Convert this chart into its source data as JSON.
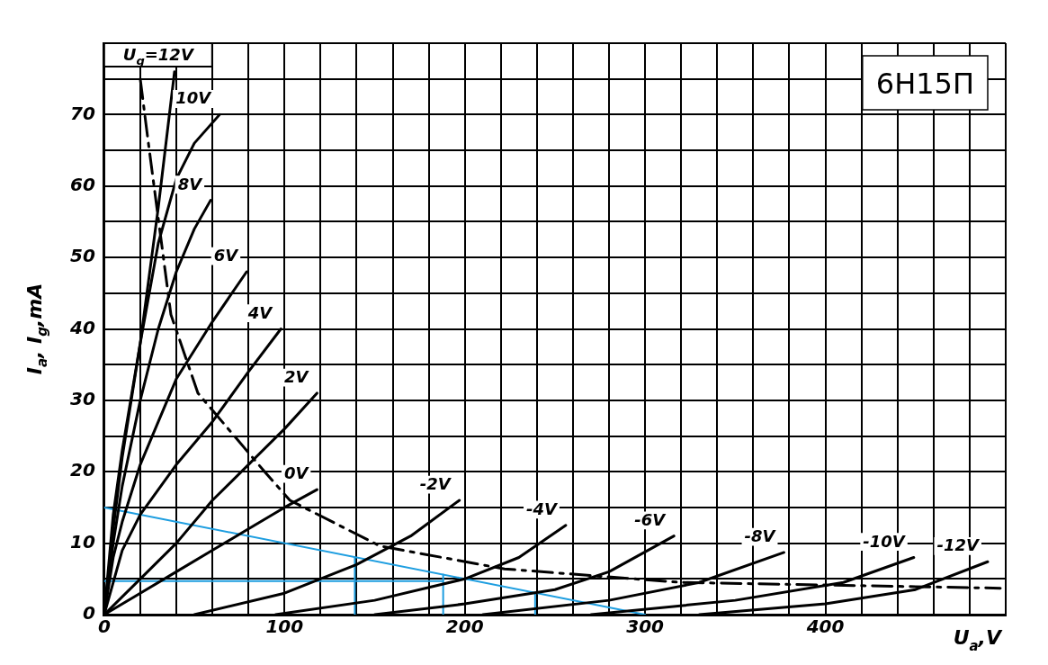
{
  "chart_data": {
    "type": "line",
    "title": "6Н15П",
    "xlabel": "U$_{a}$,V",
    "ylabel": "I$_{a}$, I$_{g}$,mA",
    "xlim": [
      0,
      500
    ],
    "ylim": [
      0,
      80
    ],
    "xticks": [
      0,
      {
        "value": 20,
        "label": null
      },
      {
        "value": 40,
        "label": null
      },
      {
        "value": 60,
        "label": null
      },
      {
        "value": 80,
        "label": null
      },
      100,
      {
        "value": 120,
        "label": null
      },
      {
        "value": 140,
        "label": null
      },
      {
        "value": 160,
        "label": null
      },
      {
        "value": 180,
        "label": null
      },
      200,
      {
        "value": 220,
        "label": null
      },
      {
        "value": 240,
        "label": null
      },
      {
        "value": 260,
        "label": null
      },
      {
        "value": 280,
        "label": null
      },
      300,
      {
        "value": 320,
        "label": null
      },
      {
        "value": 340,
        "label": null
      },
      {
        "value": 360,
        "label": null
      },
      {
        "value": 380,
        "label": null
      },
      400,
      {
        "value": 420,
        "label": null
      },
      {
        "value": 440,
        "label": null
      },
      {
        "value": 460,
        "label": null
      },
      {
        "value": 480,
        "label": null
      },
      {
        "value": 500,
        "label": null
      }
    ],
    "yticks": [
      0,
      {
        "value": 5,
        "label": null
      },
      10,
      {
        "value": 15,
        "label": null
      },
      20,
      {
        "value": 25,
        "label": null
      },
      30,
      {
        "value": 35,
        "label": null
      },
      40,
      {
        "value": 45,
        "label": null
      },
      50,
      {
        "value": 55,
        "label": null
      },
      60,
      {
        "value": 65,
        "label": null
      },
      70,
      {
        "value": 75,
        "label": null
      },
      {
        "value": 80,
        "label": null
      }
    ],
    "grid": true,
    "legend": false,
    "marker": "none",
    "line_style": "solid",
    "series": [
      {
        "name": "U$_{g}$=12V",
        "color": "#000000",
        "x": [
          0,
          5,
          10,
          20,
          30,
          39
        ],
        "values": [
          0,
          14,
          23,
          38,
          57,
          76
        ]
      },
      {
        "name": "10V",
        "color": "#000000",
        "x": [
          0,
          5,
          10,
          20,
          30,
          40,
          50,
          64
        ],
        "values": [
          0,
          12,
          22,
          38,
          52,
          61,
          66,
          70
        ]
      },
      {
        "name": "8V",
        "color": "#000000",
        "x": [
          0,
          5,
          10,
          20,
          30,
          40,
          50,
          59
        ],
        "values": [
          0,
          10,
          18,
          30,
          40,
          48,
          54,
          58
        ]
      },
      {
        "name": "6V",
        "color": "#000000",
        "x": [
          0,
          5,
          10,
          20,
          30,
          40,
          50,
          60,
          79
        ],
        "values": [
          0,
          8,
          13,
          21,
          27,
          33,
          37,
          41,
          48
        ]
      },
      {
        "name": "4V",
        "color": "#000000",
        "x": [
          0,
          10,
          20,
          40,
          60,
          80,
          98
        ],
        "values": [
          0,
          9,
          14,
          21,
          27,
          34,
          40
        ]
      },
      {
        "name": "2V",
        "color": "#000000",
        "x": [
          0,
          20,
          40,
          60,
          80,
          100,
          118
        ],
        "values": [
          0,
          5,
          10,
          16,
          21,
          26,
          31
        ]
      },
      {
        "name": "0V",
        "color": "#000000",
        "x": [
          0,
          20,
          40,
          60,
          80,
          100,
          118
        ],
        "values": [
          0,
          3,
          6,
          9,
          12,
          15,
          17.5
        ]
      },
      {
        "name": "-2V",
        "color": "#000000",
        "x": [
          50,
          100,
          140,
          170,
          197
        ],
        "values": [
          0,
          3,
          7,
          11,
          16
        ]
      },
      {
        "name": "-4V",
        "color": "#000000",
        "x": [
          95,
          150,
          200,
          230,
          256
        ],
        "values": [
          0,
          2,
          5,
          8,
          12.5
        ]
      },
      {
        "name": "-6V",
        "color": "#000000",
        "x": [
          150,
          200,
          250,
          280,
          316
        ],
        "values": [
          0,
          1.5,
          3.5,
          6,
          11
        ]
      },
      {
        "name": "-8V",
        "color": "#000000",
        "x": [
          210,
          280,
          330,
          377
        ],
        "values": [
          0,
          2,
          4.5,
          8.7
        ]
      },
      {
        "name": "-10V",
        "color": "#000000",
        "x": [
          270,
          350,
          410,
          449
        ],
        "values": [
          0,
          2,
          4.5,
          8
        ]
      },
      {
        "name": "-12V",
        "color": "#000000",
        "x": [
          330,
          400,
          450,
          490
        ],
        "values": [
          0,
          1.5,
          3.5,
          7.4
        ]
      },
      {
        "color": "#000000",
        "line_style": "dashed",
        "x": [
          20,
          24,
          37,
          52,
          89,
          103,
          153,
          222,
          320,
          497
        ],
        "values": [
          75,
          67,
          42,
          31,
          20,
          16,
          9.6,
          6.4,
          4.5,
          3.7
        ]
      },
      {
        "color": "#1e9ee0",
        "x": [
          0,
          300
        ],
        "values": [
          15,
          0
        ]
      },
      {
        "color": "#1e9ee0",
        "x": [
          0,
          188
        ],
        "values": [
          4.7,
          4.7
        ]
      },
      {
        "color": "#1e9ee0",
        "x": [
          139,
          139
        ],
        "values": [
          0,
          8
        ]
      },
      {
        "color": "#1e9ee0",
        "x": [
          188,
          188
        ],
        "values": [
          0,
          5.6
        ]
      },
      {
        "color": "#1e9ee0",
        "x": [
          239,
          239
        ],
        "values": [
          0,
          3
        ]
      }
    ]
  }
}
